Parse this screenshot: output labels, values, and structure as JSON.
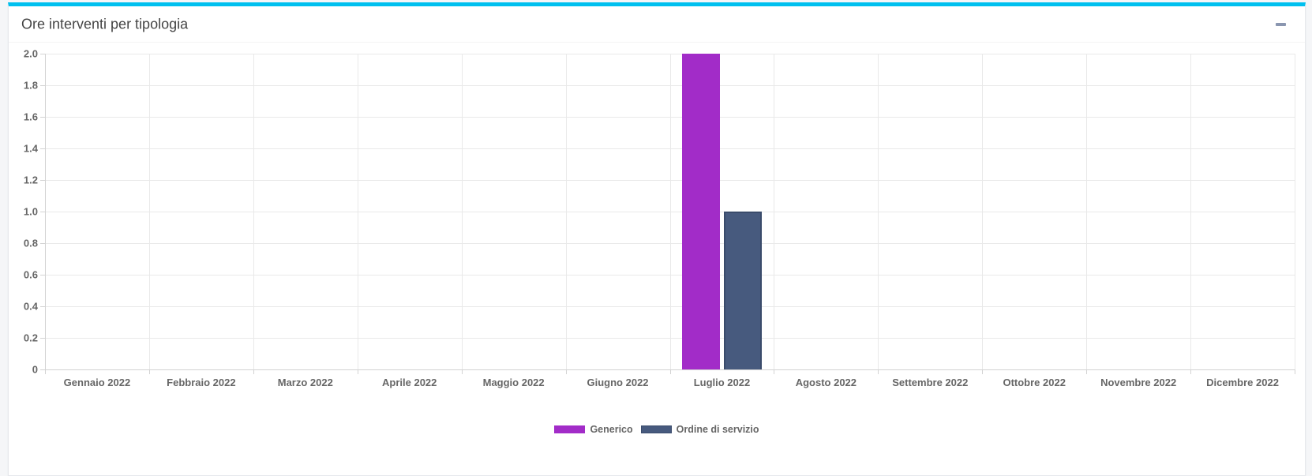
{
  "panel": {
    "title": "Ore interventi per tipologia",
    "accent_color": "#00c0ef",
    "collapse_icon": "minus-icon",
    "collapse_icon_color": "#8a96b0"
  },
  "chart_data": {
    "type": "bar",
    "title": "Ore interventi per tipologia",
    "categories": [
      "Gennaio 2022",
      "Febbraio 2022",
      "Marzo 2022",
      "Aprile 2022",
      "Maggio 2022",
      "Giugno 2022",
      "Luglio 2022",
      "Agosto 2022",
      "Settembre 2022",
      "Ottobre 2022",
      "Novembre 2022",
      "Dicembre 2022"
    ],
    "series": [
      {
        "name": "Generico",
        "color": "#a22cc8",
        "values": [
          0,
          0,
          0,
          0,
          0,
          0,
          2,
          0,
          0,
          0,
          0,
          0
        ]
      },
      {
        "name": "Ordine di servizio",
        "color": "#475a7e",
        "border_color": "#3a4b6b",
        "values": [
          0,
          0,
          0,
          0,
          0,
          0,
          1,
          0,
          0,
          0,
          0,
          0
        ]
      }
    ],
    "xlabel": "",
    "ylabel": "",
    "ylim": [
      0,
      2
    ],
    "ytick_labels": [
      "0",
      "0.2",
      "0.4",
      "0.6",
      "0.8",
      "1.0",
      "1.2",
      "1.4",
      "1.6",
      "1.8",
      "2.0"
    ],
    "grid": true,
    "legend_position": "bottom",
    "tick_label_color": "#666666",
    "grid_color": "#e9e9e9",
    "axis_color": "#d3d3d3"
  }
}
